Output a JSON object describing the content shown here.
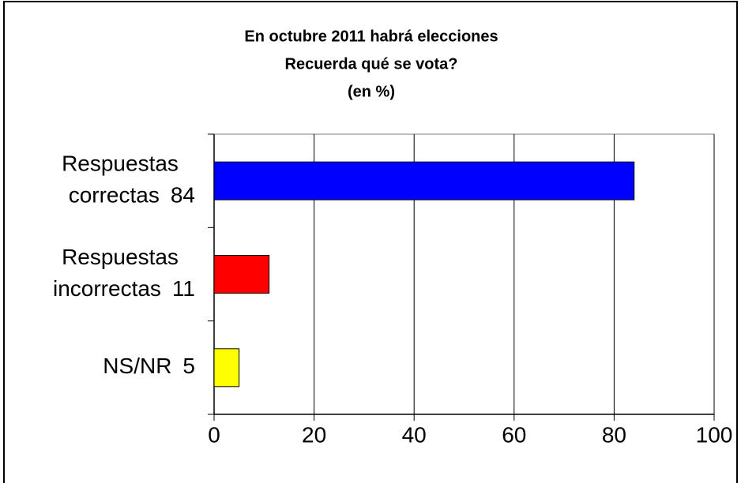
{
  "chart_data": {
    "type": "bar",
    "orientation": "horizontal",
    "title": [
      "En octubre 2011 habrá elecciones",
      "Recuerda qué se vota?",
      "(en %)"
    ],
    "categories": [
      [
        "Respuestas",
        "correctas"
      ],
      [
        "Respuestas",
        "incorrectas"
      ],
      [
        "NS/NR"
      ]
    ],
    "values": [
      84,
      11,
      5
    ],
    "colors": [
      "#0000ff",
      "#ff0000",
      "#ffff00"
    ],
    "xlim": [
      0,
      100
    ],
    "xticks": [
      0,
      20,
      40,
      60,
      80,
      100
    ],
    "grid": true
  }
}
